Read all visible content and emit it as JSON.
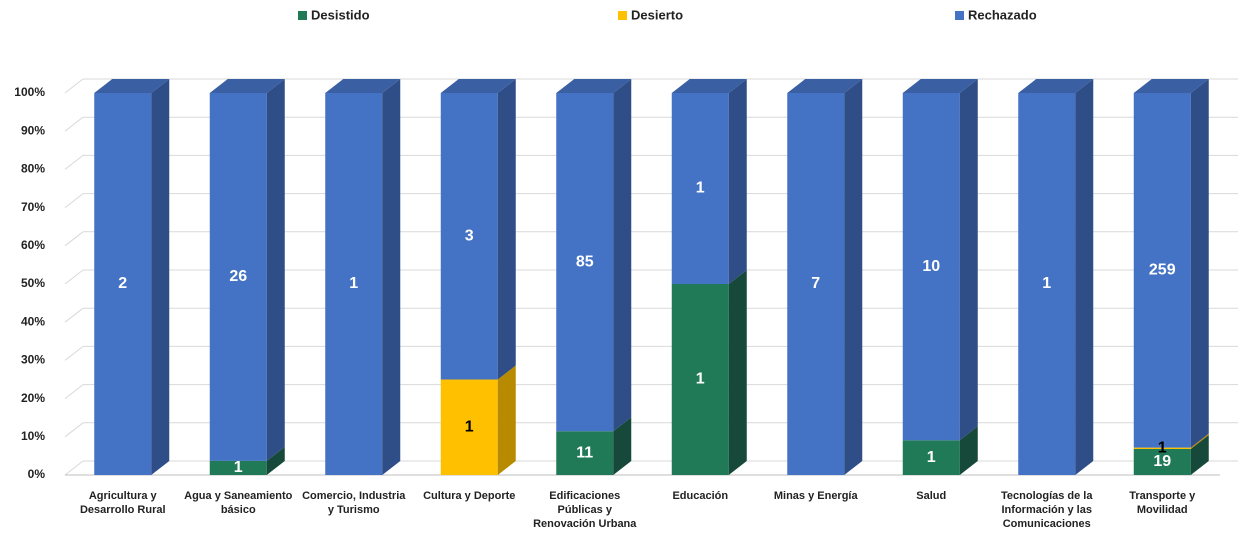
{
  "chart_data": {
    "type": "bar",
    "stacked": "percent",
    "categories": [
      "Agricultura y Desarrollo Rural",
      "Agua y Saneamiento básico",
      "Comercio, Industria y Turismo",
      "Cultura y Deporte",
      "Edificaciones Públicas y Renovación Urbana",
      "Educación",
      "Minas y Energía",
      "Salud",
      "Tecnologías de la Información y las Comunicaciones",
      "Transporte y Movilidad"
    ],
    "series": [
      {
        "name": "Desistido",
        "color": "#217a57",
        "side_color": "#17493a",
        "label_color": "#ffffff",
        "values": [
          null,
          1,
          null,
          null,
          11,
          1,
          null,
          1,
          null,
          19
        ]
      },
      {
        "name": "Desierto",
        "color": "#ffc000",
        "side_color": "#b88a00",
        "label_color": "#000000",
        "values": [
          null,
          null,
          null,
          1,
          null,
          null,
          null,
          null,
          null,
          1
        ]
      },
      {
        "name": "Rechazado",
        "color": "#4472c4",
        "side_color": "#2f4d86",
        "label_color": "#ffffff",
        "values": [
          2,
          26,
          1,
          3,
          85,
          1,
          7,
          10,
          1,
          259
        ]
      }
    ],
    "ylim": [
      0,
      100
    ],
    "yticks": [
      {
        "value": 0,
        "label": "0%"
      },
      {
        "value": 10,
        "label": "10%"
      },
      {
        "value": 20,
        "label": "20%"
      },
      {
        "value": 30,
        "label": "30%"
      },
      {
        "value": 40,
        "label": "40%"
      },
      {
        "value": 50,
        "label": "50%"
      },
      {
        "value": 60,
        "label": "60%"
      },
      {
        "value": 70,
        "label": "70%"
      },
      {
        "value": 80,
        "label": "80%"
      },
      {
        "value": 90,
        "label": "90%"
      },
      {
        "value": 100,
        "label": "100%"
      }
    ],
    "grid": true,
    "legend": "top"
  }
}
